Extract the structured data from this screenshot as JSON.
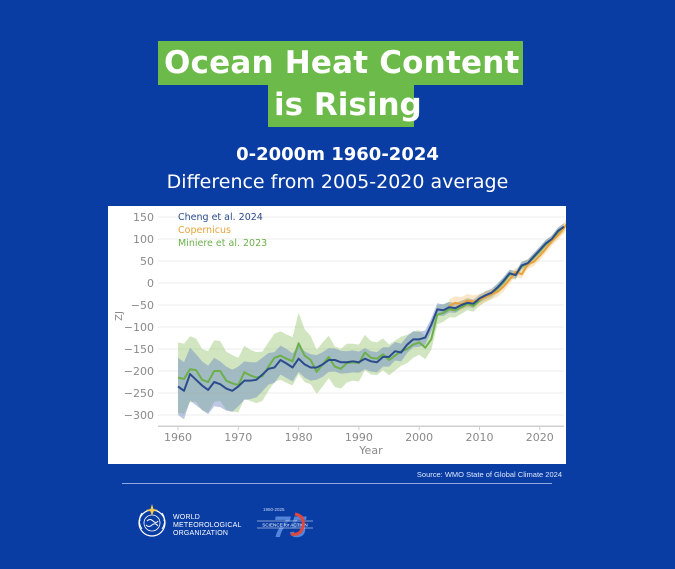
{
  "header": {
    "title_line1": "Ocean Heat Content ",
    "title_line2": "is Rising",
    "subtitle_line1": "0-2000m 1960-2024",
    "subtitle_line2": "Difference from 2005-2020 average",
    "title_highlight_color": "#6cbb4a",
    "background_color": "#0a3da3"
  },
  "chart_data": {
    "type": "line",
    "title": "Ocean Heat Content is Rising",
    "subtitle": "0-2000m 1960-2024, Difference from 2005-2020 average",
    "xlabel": "Year",
    "ylabel": "ZJ",
    "xlim": [
      1958,
      2024.5
    ],
    "ylim": [
      -330,
      160
    ],
    "xticks": [
      1960,
      1970,
      1980,
      1990,
      2000,
      2010,
      2020
    ],
    "yticks": [
      150,
      100,
      50,
      0,
      -50,
      -100,
      -150,
      -200,
      -250,
      -300
    ],
    "grid": true,
    "legend_position": "top-left",
    "series": [
      {
        "name": "Cheng et al. 2024",
        "color": "#2b4c8c",
        "band_color": "#6a86c4",
        "x_start": 1960,
        "values": [
          -235,
          -245,
          -207,
          -220,
          -233,
          -243,
          -225,
          -230,
          -240,
          -245,
          -235,
          -222,
          -222,
          -220,
          -208,
          -195,
          -192,
          -175,
          -183,
          -192,
          -172,
          -185,
          -192,
          -192,
          -185,
          -175,
          -175,
          -180,
          -180,
          -178,
          -180,
          -172,
          -178,
          -180,
          -168,
          -168,
          -155,
          -158,
          -140,
          -128,
          -128,
          -124,
          -95,
          -60,
          -62,
          -55,
          -57,
          -50,
          -45,
          -47,
          -35,
          -28,
          -22,
          -10,
          5,
          22,
          18,
          40,
          45,
          60,
          75,
          90,
          100,
          118,
          128
        ],
        "band_halfwidth": [
          65,
          65,
          60,
          58,
          55,
          55,
          55,
          52,
          50,
          48,
          45,
          44,
          42,
          40,
          38,
          36,
          35,
          33,
          33,
          32,
          30,
          30,
          30,
          28,
          28,
          27,
          26,
          26,
          25,
          25,
          24,
          24,
          23,
          23,
          22,
          22,
          21,
          20,
          19,
          18,
          17,
          16,
          15,
          14,
          13,
          12,
          11,
          10,
          10,
          10,
          9,
          9,
          9,
          9,
          9,
          8,
          8,
          8,
          8,
          8,
          8,
          8,
          8,
          8,
          8
        ]
      },
      {
        "name": "Copernicus",
        "color": "#e8a23a",
        "band_color": "#f5c98a",
        "x_start": 2005,
        "values": [
          -52,
          -45,
          -48,
          -40,
          -42,
          -38,
          -32,
          -25,
          -20,
          -8,
          8,
          25,
          20,
          42,
          48,
          62,
          78,
          95,
          108,
          125,
          145
        ],
        "band_halfwidth": [
          15,
          15,
          16,
          15,
          14,
          13,
          12,
          12,
          11,
          11,
          10,
          10,
          10,
          10,
          10,
          10,
          10,
          10,
          10,
          12,
          15
        ]
      },
      {
        "name": "Miniere et al. 2023",
        "color": "#6cb04a",
        "band_color": "#a9d08c",
        "x_start": 1960,
        "values": [
          -215,
          -218,
          -196,
          -198,
          -220,
          -225,
          -200,
          -200,
          -222,
          -228,
          -232,
          -203,
          -210,
          -215,
          -212,
          -190,
          -170,
          -165,
          -172,
          -178,
          -137,
          -165,
          -175,
          -202,
          -185,
          -168,
          -190,
          -195,
          -182,
          -180,
          -182,
          -158,
          -170,
          -172,
          -162,
          -175,
          -165,
          -155,
          -150,
          -140,
          -135,
          -147,
          -128,
          -72,
          -68,
          -60,
          -62,
          -55,
          -48,
          -52,
          -40,
          -30,
          -25,
          -12,
          2,
          20,
          18,
          38,
          44,
          58,
          72,
          88,
          98,
          115,
          125
        ],
        "band_halfwidth": [
          80,
          80,
          75,
          72,
          70,
          70,
          70,
          68,
          66,
          64,
          62,
          60,
          58,
          58,
          56,
          55,
          55,
          55,
          55,
          55,
          70,
          60,
          55,
          50,
          50,
          48,
          46,
          45,
          44,
          42,
          42,
          40,
          38,
          37,
          36,
          35,
          34,
          33,
          32,
          30,
          28,
          26,
          24,
          22,
          20,
          18,
          16,
          15,
          14,
          13,
          12,
          12,
          11,
          11,
          11,
          10,
          10,
          10,
          10,
          10,
          10,
          10,
          10,
          10,
          10
        ]
      }
    ]
  },
  "footer": {
    "source": "Source: WMO State of Global Climate 2024",
    "org_name_line1": "WORLD",
    "org_name_line2": "METEOROLOGICAL",
    "org_name_line3": "ORGANIZATION",
    "anniversary_years": "1950-2025",
    "anniversary_number": "75",
    "anniversary_tagline": "SCIENCE for ACTION"
  }
}
